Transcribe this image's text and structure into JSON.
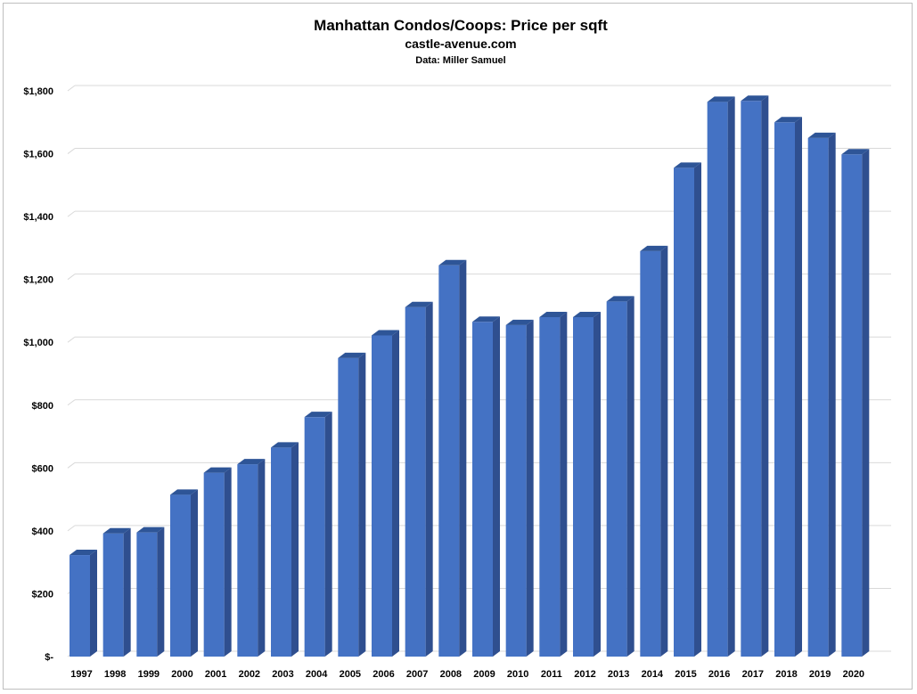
{
  "chart_data": {
    "type": "bar",
    "title": "Manhattan Condos/Coops: Price per sqft",
    "subtitle": "castle-avenue.com",
    "source": "Data: Miller Samuel",
    "categories": [
      "1997",
      "1998",
      "1999",
      "2000",
      "2001",
      "2002",
      "2003",
      "2004",
      "2005",
      "2006",
      "2007",
      "2008",
      "2009",
      "2010",
      "2011",
      "2012",
      "2013",
      "2014",
      "2015",
      "2016",
      "2017",
      "2018",
      "2019",
      "2020"
    ],
    "values": [
      323,
      392,
      395,
      515,
      585,
      612,
      665,
      762,
      950,
      1022,
      1112,
      1245,
      1065,
      1055,
      1080,
      1080,
      1130,
      1290,
      1555,
      1765,
      1768,
      1700,
      1650,
      1598
    ],
    "ylim": [
      0,
      1800
    ],
    "yticks": [
      0,
      200,
      400,
      600,
      800,
      1000,
      1200,
      1400,
      1600,
      1800
    ],
    "ytick_labels": [
      "$-",
      "$200",
      "$400",
      "$600",
      "$800",
      "$1,000",
      "$1,200",
      "$1,400",
      "$1,600",
      "$1,800"
    ],
    "grid": true,
    "legend": "none",
    "bar_color": "#4472c4",
    "bar_side_color": "#2f4f8f",
    "bar_top_color": "#2e5597"
  }
}
